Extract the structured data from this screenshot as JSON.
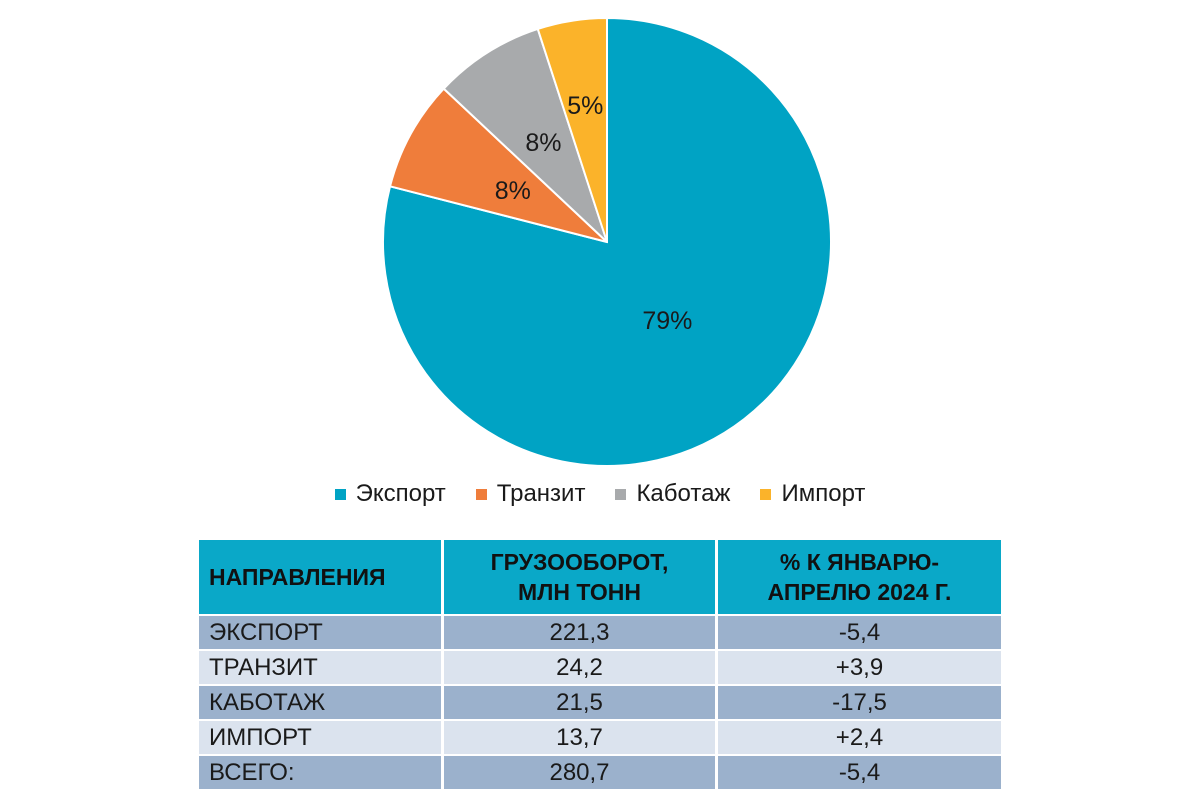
{
  "chart_data": {
    "type": "pie",
    "slices": [
      {
        "name": "Экспорт",
        "value": 79,
        "label": "79%",
        "color": "#00a3c4"
      },
      {
        "name": "Транзит",
        "value": 8,
        "label": "8%",
        "color": "#ef7d3b"
      },
      {
        "name": "Каботаж",
        "value": 8,
        "label": "8%",
        "color": "#a8aaac"
      },
      {
        "name": "Импорт",
        "value": 5,
        "label": "5%",
        "color": "#fbb32a"
      }
    ],
    "legend_position": "bottom"
  },
  "table": {
    "headers": [
      "НАПРАВЛЕНИЯ",
      "ГРУЗООБОРОТ,\nМЛН ТОНН",
      "% К ЯНВАРЮ-\nАПРЕЛЮ 2024 Г."
    ],
    "rows": [
      {
        "direction": "ЭКСПОРТ",
        "volume": "221,3",
        "change": "-5,4"
      },
      {
        "direction": "ТРАНЗИТ",
        "volume": "24,2",
        "change": "+3,9"
      },
      {
        "direction": "КАБОТАЖ",
        "volume": "21,5",
        "change": "-17,5"
      },
      {
        "direction": "ИМПОРТ",
        "volume": "13,7",
        "change": "+2,4"
      },
      {
        "direction": "ВСЕГО:",
        "volume": "280,7",
        "change": "-5,4"
      }
    ]
  }
}
